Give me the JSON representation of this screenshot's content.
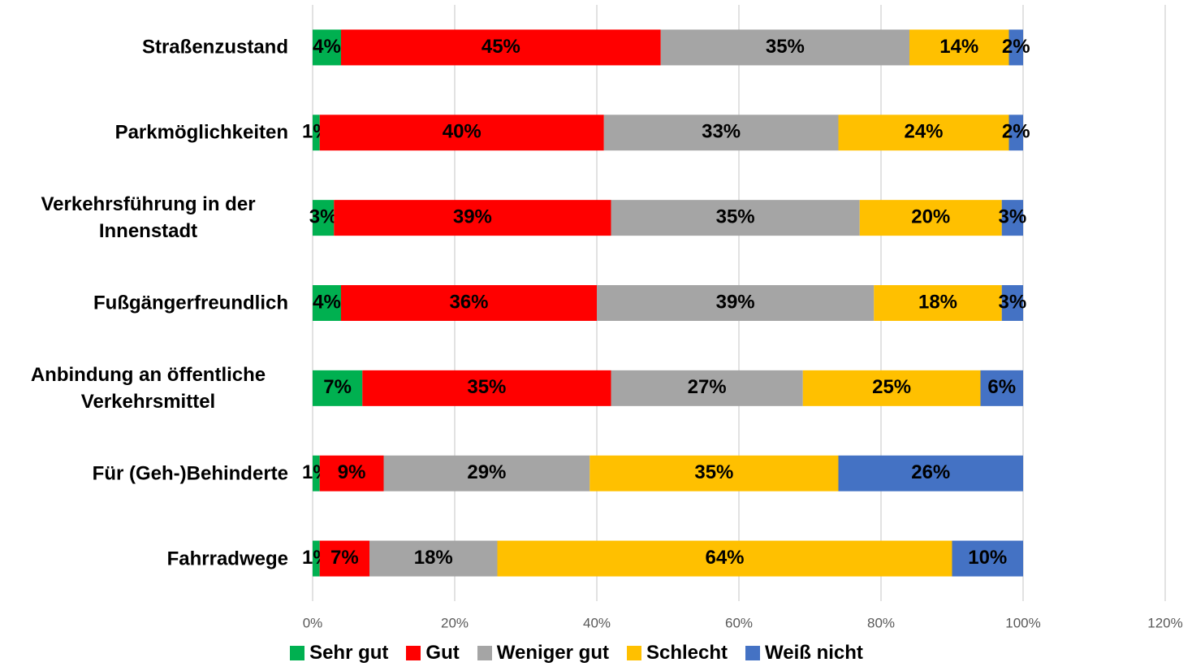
{
  "chart_data": {
    "type": "stacked_bar_horizontal",
    "categories": [
      "Straßenzustand",
      "Parkmöglichkeiten",
      "Verkehrsführung in der Innenstadt",
      "Fußgängerfreundlich",
      "Anbindung an öffentliche Verkehrsmittel",
      "Für (Geh-)Behinderte",
      "Fahrradwege"
    ],
    "series": [
      {
        "name": "Sehr gut",
        "color": "#00b050",
        "values": [
          4,
          1,
          3,
          4,
          7,
          1,
          1
        ],
        "value_labels": [
          "4%",
          "1%",
          "3%",
          "4%",
          "7%",
          "1%",
          "1%"
        ]
      },
      {
        "name": "Gut",
        "color": "#ff0000",
        "values": [
          45,
          40,
          39,
          36,
          35,
          9,
          7
        ],
        "value_labels": [
          "45%",
          "40%",
          "39%",
          "36%",
          "35%",
          "9%",
          "7%"
        ]
      },
      {
        "name": "Weniger gut",
        "color": "#a5a5a5",
        "values": [
          35,
          33,
          35,
          39,
          27,
          29,
          18
        ],
        "value_labels": [
          "35%",
          "33%",
          "35%",
          "39%",
          "27%",
          "29%",
          "18%"
        ]
      },
      {
        "name": "Schlecht",
        "color": "#ffc000",
        "values": [
          14,
          24,
          20,
          18,
          25,
          35,
          64
        ],
        "value_labels": [
          "14%",
          "24%",
          "20%",
          "18%",
          "25%",
          "35%",
          "64%"
        ]
      },
      {
        "name": "Weiß nicht",
        "color": "#4472c4",
        "values": [
          2,
          2,
          3,
          3,
          6,
          26,
          10
        ],
        "value_labels": [
          "2%",
          "2%",
          "3%",
          "3%",
          "6%",
          "26%",
          "10%"
        ]
      }
    ],
    "xlim": [
      0,
      120
    ],
    "xticks": [
      {
        "value": 0,
        "label": "0%"
      },
      {
        "value": 20,
        "label": "20%"
      },
      {
        "value": 40,
        "label": "40%"
      },
      {
        "value": 60,
        "label": "60%"
      },
      {
        "value": 80,
        "label": "80%"
      },
      {
        "value": 100,
        "label": "100%"
      },
      {
        "value": 120,
        "label": "120%"
      }
    ],
    "grid": true,
    "legend": "bottom"
  }
}
